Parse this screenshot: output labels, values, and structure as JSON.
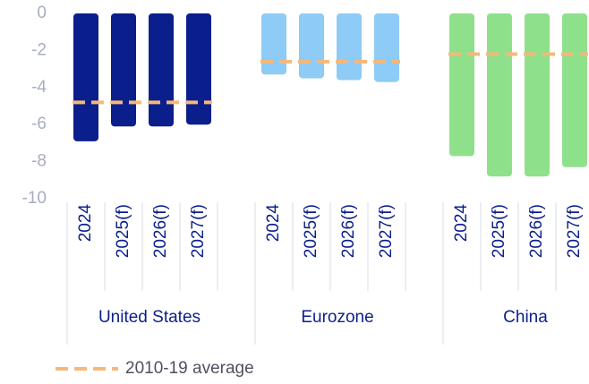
{
  "chart_data": {
    "type": "bar",
    "ylim": [
      -10,
      0
    ],
    "yticks": [
      0,
      -2,
      -4,
      -6,
      -8,
      -10
    ],
    "series": [
      {
        "name": "United States",
        "color": "#0b1f8c",
        "categories": [
          "2024",
          "2025(f)",
          "2026(f)",
          "2027(f)"
        ],
        "values": [
          -6.9,
          -6.1,
          -6.1,
          -6.0
        ]
      },
      {
        "name": "Eurozone",
        "color": "#8ecbf6",
        "categories": [
          "2024",
          "2025(f)",
          "2026(f)",
          "2027(f)"
        ],
        "values": [
          -3.3,
          -3.5,
          -3.6,
          -3.7
        ]
      },
      {
        "name": "China",
        "color": "#8fe08b",
        "categories": [
          "2024",
          "2025(f)",
          "2026(f)",
          "2027(f)"
        ],
        "values": [
          -7.7,
          -8.8,
          -8.8,
          -8.3
        ]
      }
    ],
    "average": {
      "name": "2010-19 average",
      "color": "#f6b87a",
      "values": [
        -4.8,
        -2.6,
        -2.2
      ]
    }
  }
}
